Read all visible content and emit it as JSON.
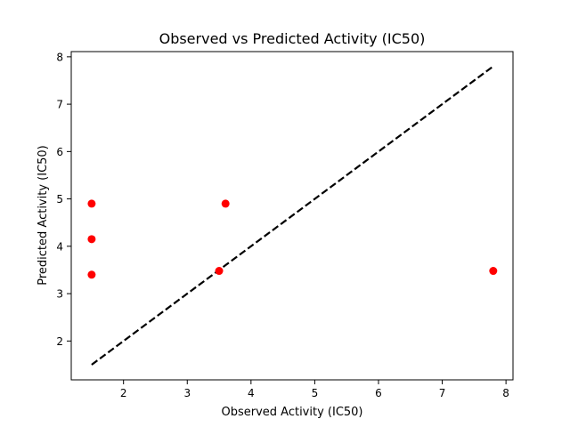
{
  "chart_data": {
    "type": "scatter",
    "title": "Observed vs Predicted Activity (IC50)",
    "xlabel": "Observed Activity (IC50)",
    "ylabel": "Predicted Activity (IC50)",
    "xlim": [
      1.18,
      8.11
    ],
    "ylim": [
      1.18,
      8.11
    ],
    "xticks": [
      "2",
      "3",
      "4",
      "5",
      "6",
      "7",
      "8"
    ],
    "yticks": [
      "2",
      "3",
      "4",
      "5",
      "6",
      "7",
      "8"
    ],
    "grid": false,
    "points": [
      {
        "x": 1.5,
        "y": 4.9
      },
      {
        "x": 1.5,
        "y": 4.15
      },
      {
        "x": 1.5,
        "y": 3.4
      },
      {
        "x": 3.5,
        "y": 3.48
      },
      {
        "x": 3.6,
        "y": 4.9
      },
      {
        "x": 7.8,
        "y": 3.48
      }
    ],
    "reference_line": {
      "from": [
        1.5,
        1.5
      ],
      "to": [
        7.8,
        7.8
      ],
      "style": "dashed",
      "color": "#000000"
    },
    "point_color": "#ff0000"
  }
}
